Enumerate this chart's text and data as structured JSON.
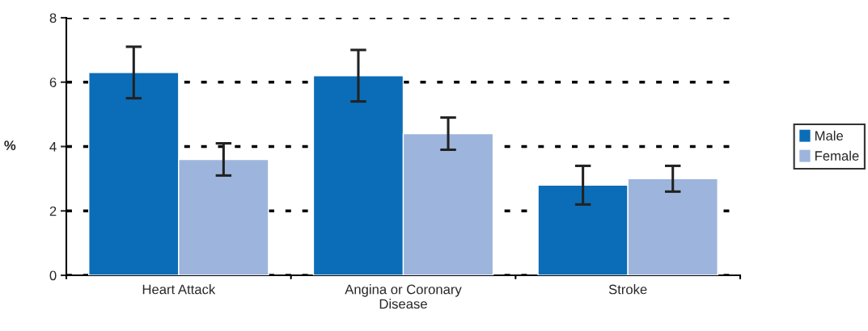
{
  "chart_data": {
    "type": "bar",
    "ylabel": "%",
    "categories": [
      "Heart Attack",
      "Angina or Coronary Disease",
      "Stroke"
    ],
    "series": [
      {
        "name": "Male",
        "color": "#0b6db7",
        "values": [
          6.3,
          6.2,
          2.8
        ],
        "errors": [
          [
            5.5,
            7.1
          ],
          [
            5.4,
            7.0
          ],
          [
            2.2,
            3.4
          ]
        ]
      },
      {
        "name": "Female",
        "color": "#9db4dc",
        "values": [
          3.6,
          4.4,
          3.0
        ],
        "errors": [
          [
            3.1,
            4.1
          ],
          [
            3.9,
            4.9
          ],
          [
            2.6,
            3.4
          ]
        ]
      }
    ],
    "ylim": [
      0,
      8
    ],
    "yticks": [
      0,
      2,
      4,
      6,
      8
    ],
    "grid": "y",
    "legend": "right"
  }
}
